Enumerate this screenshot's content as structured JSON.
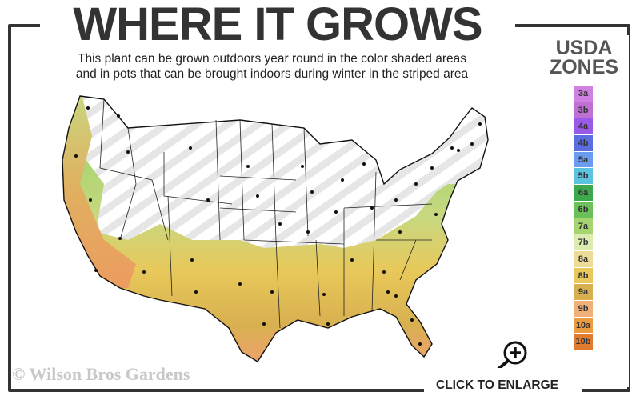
{
  "header": {
    "title": "WHERE IT GROWS",
    "subtitle_line1": "This plant can be grown outdoors year round in the color shaded areas",
    "subtitle_line2": "and in pots that can be brought indoors during winter in the striped area"
  },
  "legend": {
    "title_line1": "USDA",
    "title_line2": "ZONES",
    "zones": [
      {
        "label": "3a",
        "color": "#d080e0"
      },
      {
        "label": "3b",
        "color": "#c070d4"
      },
      {
        "label": "4a",
        "color": "#9a5ae8"
      },
      {
        "label": "4b",
        "color": "#5a6ee0"
      },
      {
        "label": "5a",
        "color": "#6c9cf0"
      },
      {
        "label": "5b",
        "color": "#5cc4e0"
      },
      {
        "label": "6a",
        "color": "#3ea84c"
      },
      {
        "label": "6b",
        "color": "#6cc05a"
      },
      {
        "label": "7a",
        "color": "#a6d470"
      },
      {
        "label": "7b",
        "color": "#dcecb0"
      },
      {
        "label": "8a",
        "color": "#ecdc98"
      },
      {
        "label": "8b",
        "color": "#e8c85a"
      },
      {
        "label": "9a",
        "color": "#d8b050"
      },
      {
        "label": "9b",
        "color": "#f0b078"
      },
      {
        "label": "10a",
        "color": "#ec9c40"
      },
      {
        "label": "10b",
        "color": "#e07c30"
      }
    ]
  },
  "footer": {
    "watermark": "© Wilson Bros Gardens",
    "enlarge_label": "CLICK TO ENLARGE",
    "enlarge_icon": "zoom-in-magnifier-icon"
  }
}
